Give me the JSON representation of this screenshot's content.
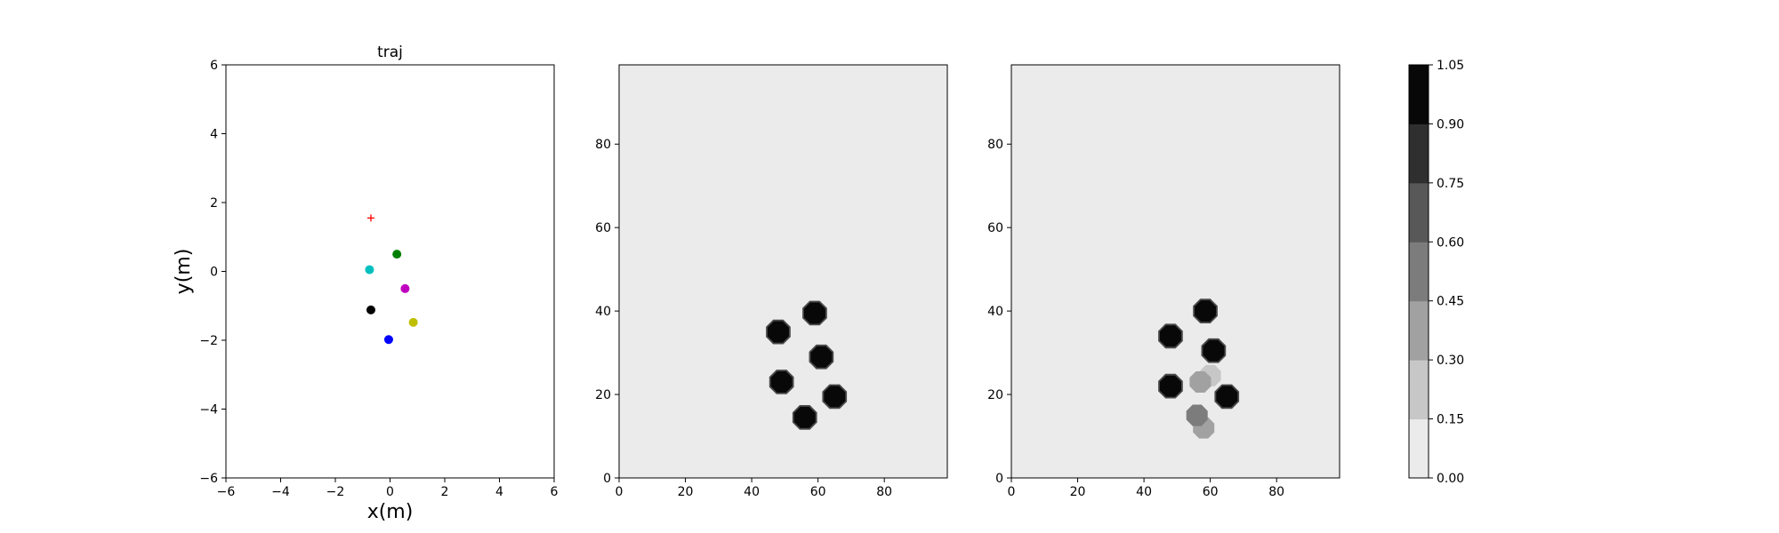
{
  "chart_data": [
    {
      "type": "scatter",
      "title": "traj",
      "xlabel": "x(m)",
      "ylabel": "y(m)",
      "xlim": [
        -6,
        6
      ],
      "ylim": [
        -6,
        6
      ],
      "xticks": [
        "−6",
        "−4",
        "−2",
        "0",
        "2",
        "4",
        "6"
      ],
      "yticks": [
        "−6",
        "−4",
        "−2",
        "0",
        "2",
        "4",
        "6"
      ],
      "grid": false,
      "points": [
        {
          "x": 0.25,
          "y": 0.5,
          "color": "#008000",
          "marker": "circle"
        },
        {
          "x": -0.75,
          "y": 0.05,
          "color": "#00bfbf",
          "marker": "circle"
        },
        {
          "x": 0.55,
          "y": -0.5,
          "color": "#bf00bf",
          "marker": "circle"
        },
        {
          "x": -0.7,
          "y": -1.12,
          "color": "#000000",
          "marker": "circle"
        },
        {
          "x": 0.85,
          "y": -1.48,
          "color": "#bfbf00",
          "marker": "circle"
        },
        {
          "x": -0.05,
          "y": -1.98,
          "color": "#0000ff",
          "marker": "circle"
        },
        {
          "x": -0.7,
          "y": 1.55,
          "color": "#ff0000",
          "marker": "plus"
        }
      ]
    },
    {
      "type": "heatmap",
      "xlim": [
        0,
        99
      ],
      "ylim": [
        0,
        99
      ],
      "xticks": [
        "0",
        "20",
        "40",
        "60",
        "80"
      ],
      "yticks": [
        "0",
        "20",
        "40",
        "60",
        "80"
      ],
      "background_level": 0.0,
      "blobs": [
        {
          "x": 48,
          "y": 35,
          "level": 1.0
        },
        {
          "x": 59,
          "y": 39.5,
          "level": 1.0
        },
        {
          "x": 61,
          "y": 29,
          "level": 1.0
        },
        {
          "x": 49,
          "y": 23,
          "level": 1.0
        },
        {
          "x": 65,
          "y": 19.5,
          "level": 1.0
        },
        {
          "x": 56,
          "y": 14.5,
          "level": 1.0
        }
      ]
    },
    {
      "type": "heatmap",
      "xlim": [
        0,
        99
      ],
      "ylim": [
        0,
        99
      ],
      "xticks": [
        "0",
        "20",
        "40",
        "60",
        "80"
      ],
      "yticks": [
        "0",
        "20",
        "40",
        "60",
        "80"
      ],
      "background_level": 0.0,
      "blobs": [
        {
          "x": 48,
          "y": 34,
          "level": 1.0
        },
        {
          "x": 58.5,
          "y": 40,
          "level": 1.0
        },
        {
          "x": 61,
          "y": 30.5,
          "level": 1.0
        },
        {
          "x": 48,
          "y": 22,
          "level": 1.0
        },
        {
          "x": 65,
          "y": 19.5,
          "level": 1.0
        },
        {
          "x": 56,
          "y": 15,
          "level": 0.5
        },
        {
          "x": 58,
          "y": 12,
          "level": 0.4
        },
        {
          "x": 57,
          "y": 23,
          "level": 0.3
        },
        {
          "x": 60,
          "y": 24.5,
          "level": 0.2
        }
      ]
    }
  ],
  "colorbar": {
    "levels": [
      "0.00",
      "0.15",
      "0.30",
      "0.45",
      "0.60",
      "0.75",
      "0.90",
      "1.05"
    ],
    "colors": [
      "#ebebeb",
      "#c7c7c7",
      "#a1a1a1",
      "#7c7c7c",
      "#585858",
      "#2f2f2f",
      "#080808"
    ]
  }
}
